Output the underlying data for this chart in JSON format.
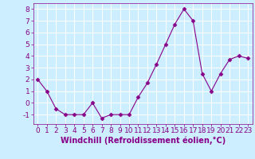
{
  "x": [
    0,
    1,
    2,
    3,
    4,
    5,
    6,
    7,
    8,
    9,
    10,
    11,
    12,
    13,
    14,
    15,
    16,
    17,
    18,
    19,
    20,
    21,
    22,
    23
  ],
  "y": [
    2.0,
    1.0,
    -0.5,
    -1.0,
    -1.0,
    -1.0,
    0.0,
    -1.3,
    -1.0,
    -1.0,
    -1.0,
    0.5,
    1.7,
    3.3,
    5.0,
    6.7,
    8.0,
    7.0,
    2.5,
    1.0,
    2.5,
    3.7,
    4.0,
    3.8
  ],
  "line_color": "#880088",
  "marker": "D",
  "marker_size": 2.5,
  "bg_color": "#cceeff",
  "grid_color": "#ffffff",
  "xlabel": "Windchill (Refroidissement éolien,°C)",
  "xlabel_color": "#880088",
  "tick_color": "#880088",
  "ylim": [
    -1.8,
    8.5
  ],
  "xlim": [
    -0.5,
    23.5
  ],
  "yticks": [
    -1,
    0,
    1,
    2,
    3,
    4,
    5,
    6,
    7,
    8
  ],
  "xticks": [
    0,
    1,
    2,
    3,
    4,
    5,
    6,
    7,
    8,
    9,
    10,
    11,
    12,
    13,
    14,
    15,
    16,
    17,
    18,
    19,
    20,
    21,
    22,
    23
  ],
  "xtick_labels": [
    "0",
    "1",
    "2",
    "3",
    "4",
    "5",
    "6",
    "7",
    "8",
    "9",
    "10",
    "11",
    "12",
    "13",
    "14",
    "15",
    "16",
    "17",
    "18",
    "19",
    "20",
    "21",
    "22",
    "23"
  ],
  "font_size": 6.5,
  "xlabel_fontsize": 7.0
}
